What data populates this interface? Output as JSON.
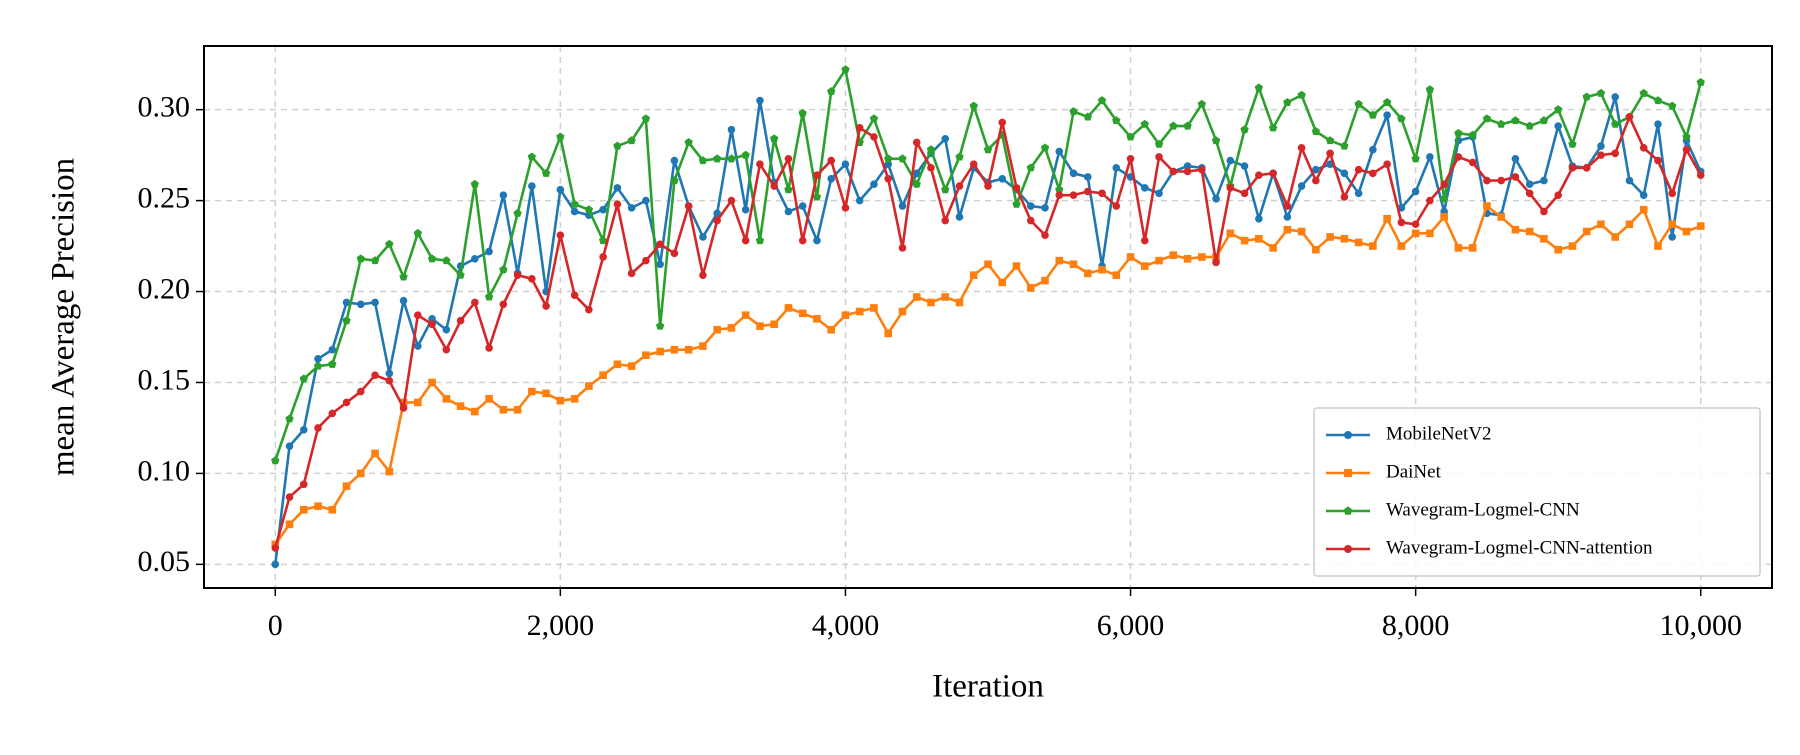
{
  "chart_data": {
    "type": "line",
    "xlabel": "Iteration",
    "ylabel": "mean Average Precision",
    "xlim": [
      -500,
      10500
    ],
    "ylim": [
      0.037,
      0.335
    ],
    "xticks": [
      0,
      {
        "value": 2000,
        "label": "2,000"
      },
      {
        "value": 4000,
        "label": "4,000"
      },
      {
        "value": 6000,
        "label": "6,000"
      },
      {
        "value": 8000,
        "label": "8,000"
      },
      {
        "value": 10000,
        "label": "10,000"
      }
    ],
    "yticks": [
      0.05,
      {
        "value": 0.1,
        "label": "0.10"
      },
      0.15,
      {
        "value": 0.2,
        "label": "0.20"
      },
      0.25,
      {
        "value": 0.3,
        "label": "0.30"
      }
    ],
    "grid": true,
    "legend": "lower right",
    "x": [
      0,
      100,
      200,
      300,
      400,
      500,
      600,
      700,
      800,
      900,
      1000,
      1100,
      1200,
      1300,
      1400,
      1500,
      1600,
      1700,
      1800,
      1900,
      2000,
      2100,
      2200,
      2300,
      2400,
      2500,
      2600,
      2700,
      2800,
      2900,
      3000,
      3100,
      3200,
      3300,
      3400,
      3500,
      3600,
      3700,
      3800,
      3900,
      4000,
      4100,
      4200,
      4300,
      4400,
      4500,
      4600,
      4700,
      4800,
      4900,
      5000,
      5100,
      5200,
      5300,
      5400,
      5500,
      5600,
      5700,
      5800,
      5900,
      6000,
      6100,
      6200,
      6300,
      6400,
      6500,
      6600,
      6700,
      6800,
      6900,
      7000,
      7100,
      7200,
      7300,
      7400,
      7500,
      7600,
      7700,
      7800,
      7900,
      8000,
      8100,
      8200,
      8300,
      8400,
      8500,
      8600,
      8700,
      8800,
      8900,
      9000,
      9100,
      9200,
      9300,
      9400,
      9500,
      9600,
      9700,
      9800,
      9900,
      10000
    ],
    "series": [
      {
        "name": "MobileNetV2",
        "color": "#1f77b4",
        "marker": "circle",
        "values": [
          0.05,
          0.115,
          0.124,
          0.163,
          0.168,
          0.194,
          0.193,
          0.194,
          0.155,
          0.195,
          0.17,
          0.185,
          0.179,
          0.214,
          0.218,
          0.222,
          0.253,
          0.21,
          0.258,
          0.2,
          0.256,
          0.244,
          0.242,
          0.245,
          0.257,
          0.246,
          0.25,
          0.215,
          0.272,
          0.247,
          0.23,
          0.243,
          0.289,
          0.245,
          0.305,
          0.26,
          0.244,
          0.247,
          0.228,
          0.262,
          0.27,
          0.25,
          0.259,
          0.27,
          0.247,
          0.265,
          0.276,
          0.284,
          0.241,
          0.268,
          0.26,
          0.262,
          0.256,
          0.247,
          0.246,
          0.277,
          0.265,
          0.263,
          0.214,
          0.268,
          0.263,
          0.257,
          0.254,
          0.266,
          0.269,
          0.268,
          0.251,
          0.272,
          0.269,
          0.24,
          0.265,
          0.241,
          0.258,
          0.267,
          0.27,
          0.265,
          0.254,
          0.278,
          0.297,
          0.246,
          0.255,
          0.274,
          0.244,
          0.283,
          0.285,
          0.243,
          0.242,
          0.273,
          0.259,
          0.261,
          0.291,
          0.269,
          0.268,
          0.28,
          0.307,
          0.261,
          0.253,
          0.292,
          0.23,
          0.283,
          0.266
        ]
      },
      {
        "name": "DaiNet",
        "color": "#ff7f0e",
        "marker": "square",
        "values": [
          0.061,
          0.072,
          0.08,
          0.082,
          0.08,
          0.093,
          0.1,
          0.111,
          0.101,
          0.139,
          0.139,
          0.15,
          0.141,
          0.137,
          0.134,
          0.141,
          0.135,
          0.135,
          0.145,
          0.144,
          0.14,
          0.141,
          0.148,
          0.154,
          0.16,
          0.159,
          0.165,
          0.167,
          0.168,
          0.168,
          0.17,
          0.179,
          0.18,
          0.187,
          0.181,
          0.182,
          0.191,
          0.188,
          0.185,
          0.179,
          0.187,
          0.189,
          0.191,
          0.177,
          0.189,
          0.197,
          0.194,
          0.197,
          0.194,
          0.209,
          0.215,
          0.205,
          0.214,
          0.202,
          0.206,
          0.217,
          0.215,
          0.21,
          0.212,
          0.209,
          0.219,
          0.214,
          0.217,
          0.22,
          0.218,
          0.219,
          0.219,
          0.232,
          0.228,
          0.229,
          0.224,
          0.234,
          0.233,
          0.223,
          0.23,
          0.229,
          0.227,
          0.225,
          0.24,
          0.225,
          0.232,
          0.232,
          0.241,
          0.224,
          0.224,
          0.247,
          0.241,
          0.234,
          0.233,
          0.229,
          0.223,
          0.225,
          0.233,
          0.237,
          0.23,
          0.237,
          0.245,
          0.225,
          0.237,
          0.233,
          0.236
        ]
      },
      {
        "name": "Wavegram-Logmel-CNN",
        "color": "#2ca02c",
        "marker": "pentagon",
        "values": [
          0.107,
          0.13,
          0.152,
          0.159,
          0.16,
          0.184,
          0.218,
          0.217,
          0.226,
          0.208,
          0.232,
          0.218,
          0.217,
          0.209,
          0.259,
          0.197,
          0.212,
          0.243,
          0.274,
          0.265,
          0.285,
          0.248,
          0.245,
          0.228,
          0.28,
          0.283,
          0.295,
          0.181,
          0.261,
          0.282,
          0.272,
          0.273,
          0.273,
          0.275,
          0.228,
          0.284,
          0.256,
          0.298,
          0.252,
          0.31,
          0.322,
          0.282,
          0.295,
          0.273,
          0.273,
          0.259,
          0.278,
          0.256,
          0.274,
          0.302,
          0.278,
          0.286,
          0.248,
          0.268,
          0.279,
          0.256,
          0.299,
          0.296,
          0.305,
          0.294,
          0.285,
          0.292,
          0.281,
          0.291,
          0.291,
          0.303,
          0.283,
          0.258,
          0.289,
          0.312,
          0.29,
          0.304,
          0.308,
          0.288,
          0.283,
          0.28,
          0.303,
          0.297,
          0.304,
          0.295,
          0.273,
          0.311,
          0.251,
          0.287,
          0.286,
          0.295,
          0.292,
          0.294,
          0.291,
          0.294,
          0.3,
          0.281,
          0.307,
          0.309,
          0.292,
          0.296,
          0.309,
          0.305,
          0.302,
          0.285,
          0.315
        ]
      },
      {
        "name": "Wavegram-Logmel-CNN-attention",
        "color": "#d62728",
        "marker": "circle",
        "values": [
          0.059,
          0.087,
          0.094,
          0.125,
          0.133,
          0.139,
          0.145,
          0.154,
          0.151,
          0.136,
          0.187,
          0.182,
          0.168,
          0.184,
          0.194,
          0.169,
          0.193,
          0.209,
          0.207,
          0.192,
          0.231,
          0.198,
          0.19,
          0.219,
          0.248,
          0.21,
          0.217,
          0.226,
          0.221,
          0.247,
          0.209,
          0.239,
          0.25,
          0.228,
          0.27,
          0.258,
          0.273,
          0.228,
          0.264,
          0.272,
          0.246,
          0.29,
          0.285,
          0.262,
          0.224,
          0.282,
          0.268,
          0.239,
          0.258,
          0.27,
          0.258,
          0.293,
          0.257,
          0.239,
          0.231,
          0.253,
          0.253,
          0.255,
          0.254,
          0.247,
          0.273,
          0.228,
          0.274,
          0.266,
          0.266,
          0.267,
          0.216,
          0.257,
          0.254,
          0.264,
          0.265,
          0.247,
          0.279,
          0.261,
          0.276,
          0.252,
          0.267,
          0.265,
          0.27,
          0.238,
          0.237,
          0.25,
          0.259,
          0.274,
          0.271,
          0.261,
          0.261,
          0.263,
          0.254,
          0.244,
          0.253,
          0.268,
          0.268,
          0.275,
          0.276,
          0.296,
          0.279,
          0.272,
          0.254,
          0.278,
          0.264
        ]
      }
    ]
  }
}
